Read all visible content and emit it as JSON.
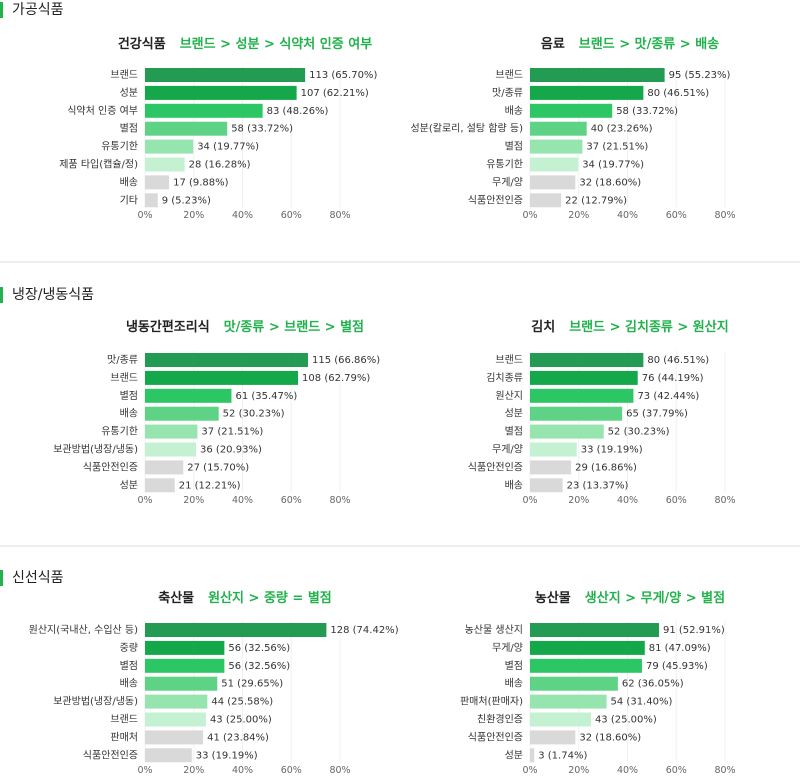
{
  "sections": [
    {
      "title": "가공식품",
      "charts": [
        {
          "type": "bar",
          "title": "건강식품",
          "subtitle": "브랜드 > 성분 > 식약처 인증 여부",
          "categories": [
            "브랜드",
            "성분",
            "식약처 인증 여부",
            "별점",
            "유통기한",
            "제품 타입(캡슐/정)",
            "배송",
            "기타"
          ],
          "values": [
            65.7,
            62.21,
            48.26,
            33.72,
            19.77,
            16.28,
            9.88,
            5.23
          ],
          "value_labels": [
            "113 (65.70%)",
            "107 (62.21%)",
            "83 (48.26%)",
            "58 (33.72%)",
            "34 (19.77%)",
            "28 (16.28%)",
            "17 (9.88%)",
            "9 (5.23%)"
          ],
          "colors": [
            "#239b52",
            "#14a84b",
            "#2cc764",
            "#5fd385",
            "#96e4ae",
            "#c4f1d1",
            "#d9d9d9",
            "#d9d9d9"
          ],
          "xlim": [
            0,
            80
          ],
          "xticks": [
            {
              "value": 0,
              "label": "0%"
            },
            {
              "value": 20,
              "label": "20%"
            },
            {
              "value": 40,
              "label": "40%"
            },
            {
              "value": 60,
              "label": "60%"
            },
            {
              "value": 80,
              "label": "80%"
            }
          ],
          "grid": true
        },
        {
          "type": "bar",
          "title": "음료",
          "subtitle": "브랜드 > 맛/종류 > 배송",
          "categories": [
            "브랜드",
            "맛/종류",
            "배송",
            "성분(칼로리, 설탕 함량 등)",
            "별점",
            "유통기한",
            "무게/양",
            "식품안전인증"
          ],
          "values": [
            55.23,
            46.51,
            33.72,
            23.26,
            21.51,
            19.77,
            18.6,
            12.79
          ],
          "value_labels": [
            "95 (55.23%)",
            "80 (46.51%)",
            "58 (33.72%)",
            "40 (23.26%)",
            "37 (21.51%)",
            "34 (19.77%)",
            "32 (18.60%)",
            "22 (12.79%)"
          ],
          "colors": [
            "#239b52",
            "#14a84b",
            "#2cc764",
            "#5fd385",
            "#96e4ae",
            "#c4f1d1",
            "#d9d9d9",
            "#d9d9d9"
          ],
          "xlim": [
            0,
            80
          ],
          "xticks": [
            {
              "value": 0,
              "label": "0%"
            },
            {
              "value": 20,
              "label": "20%"
            },
            {
              "value": 40,
              "label": "40%"
            },
            {
              "value": 60,
              "label": "60%"
            },
            {
              "value": 80,
              "label": "80%"
            }
          ],
          "grid": true
        }
      ]
    },
    {
      "title": "냉장/냉동식품",
      "charts": [
        {
          "type": "bar",
          "title": "냉동간편조리식",
          "subtitle": "맛/종류 > 브랜드 > 별점",
          "categories": [
            "맛/종류",
            "브랜드",
            "별점",
            "배송",
            "유통기한",
            "보관방법(냉장/냉동)",
            "식품안전인증",
            "성분"
          ],
          "values": [
            66.86,
            62.79,
            35.47,
            30.23,
            21.51,
            20.93,
            15.7,
            12.21
          ],
          "value_labels": [
            "115 (66.86%)",
            "108 (62.79%)",
            "61 (35.47%)",
            "52 (30.23%)",
            "37 (21.51%)",
            "36 (20.93%)",
            "27 (15.70%)",
            "21 (12.21%)"
          ],
          "colors": [
            "#239b52",
            "#14a84b",
            "#2cc764",
            "#5fd385",
            "#96e4ae",
            "#c4f1d1",
            "#d9d9d9",
            "#d9d9d9"
          ],
          "xlim": [
            0,
            80
          ],
          "xticks": [
            {
              "value": 0,
              "label": "0%"
            },
            {
              "value": 20,
              "label": "20%"
            },
            {
              "value": 40,
              "label": "40%"
            },
            {
              "value": 60,
              "label": "60%"
            },
            {
              "value": 80,
              "label": "80%"
            }
          ],
          "grid": true
        },
        {
          "type": "bar",
          "title": "김치",
          "subtitle": "브랜드 > 김치종류 > 원산지",
          "categories": [
            "브랜드",
            "김치종류",
            "원산지",
            "성분",
            "별점",
            "무게/양",
            "식품안전인증",
            "배송"
          ],
          "values": [
            46.51,
            44.19,
            42.44,
            37.79,
            30.23,
            19.19,
            16.86,
            13.37
          ],
          "value_labels": [
            "80 (46.51%)",
            "76 (44.19%)",
            "73 (42.44%)",
            "65 (37.79%)",
            "52 (30.23%)",
            "33 (19.19%)",
            "29 (16.86%)",
            "23 (13.37%)"
          ],
          "colors": [
            "#239b52",
            "#14a84b",
            "#2cc764",
            "#5fd385",
            "#96e4ae",
            "#c4f1d1",
            "#d9d9d9",
            "#d9d9d9"
          ],
          "xlim": [
            0,
            80
          ],
          "xticks": [
            {
              "value": 0,
              "label": "0%"
            },
            {
              "value": 20,
              "label": "20%"
            },
            {
              "value": 40,
              "label": "40%"
            },
            {
              "value": 60,
              "label": "60%"
            },
            {
              "value": 80,
              "label": "80%"
            }
          ],
          "grid": true
        }
      ]
    },
    {
      "title": "신선식품",
      "charts": [
        {
          "type": "bar",
          "title": "축산물",
          "subtitle": "원산지 > 중량 = 별점",
          "categories": [
            "원산지(국내산, 수입산 등)",
            "중량",
            "별점",
            "배송",
            "보관방법(냉장/냉동)",
            "브랜드",
            "판매처",
            "식품안전인증"
          ],
          "values": [
            74.42,
            32.56,
            32.56,
            29.65,
            25.58,
            25.0,
            23.84,
            19.19
          ],
          "value_labels": [
            "128 (74.42%)",
            "56 (32.56%)",
            "56 (32.56%)",
            "51 (29.65%)",
            "44 (25.58%)",
            "43 (25.00%)",
            "41 (23.84%)",
            "33 (19.19%)"
          ],
          "colors": [
            "#239b52",
            "#14a84b",
            "#2cc764",
            "#5fd385",
            "#96e4ae",
            "#c4f1d1",
            "#d9d9d9",
            "#d9d9d9"
          ],
          "xlim": [
            0,
            80
          ],
          "xticks": [
            {
              "value": 0,
              "label": "0%"
            },
            {
              "value": 20,
              "label": "20%"
            },
            {
              "value": 40,
              "label": "40%"
            },
            {
              "value": 60,
              "label": "60%"
            },
            {
              "value": 80,
              "label": "80%"
            }
          ],
          "grid": true
        },
        {
          "type": "bar",
          "title": "농산물",
          "subtitle": "생산지 > 무게/양 > 별점",
          "categories": [
            "농산물 생산지",
            "무게/양",
            "별점",
            "배송",
            "판매처(판매자)",
            "친환경인증",
            "식품안전인증",
            "성분"
          ],
          "values": [
            52.91,
            47.09,
            45.93,
            36.05,
            31.4,
            25.0,
            18.6,
            1.74
          ],
          "value_labels": [
            "91 (52.91%)",
            "81 (47.09%)",
            "79 (45.93%)",
            "62 (36.05%)",
            "54 (31.40%)",
            "43 (25.00%)",
            "32 (18.60%)",
            "3 (1.74%)"
          ],
          "colors": [
            "#239b52",
            "#14a84b",
            "#2cc764",
            "#5fd385",
            "#96e4ae",
            "#c4f1d1",
            "#d9d9d9",
            "#d9d9d9"
          ],
          "xlim": [
            0,
            80
          ],
          "xticks": [
            {
              "value": 0,
              "label": "0%"
            },
            {
              "value": 20,
              "label": "20%"
            },
            {
              "value": 40,
              "label": "40%"
            },
            {
              "value": 60,
              "label": "60%"
            },
            {
              "value": 80,
              "label": "80%"
            }
          ],
          "grid": true
        }
      ]
    }
  ]
}
